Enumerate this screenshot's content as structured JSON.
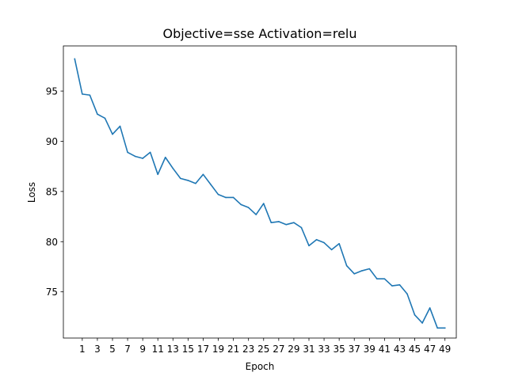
{
  "chart_data": {
    "type": "line",
    "title": "Objective=sse Activation=relu",
    "xlabel": "Epoch",
    "ylabel": "Loss",
    "xlim": [
      -1.5,
      50.5
    ],
    "ylim": [
      70.4,
      99.5
    ],
    "xticks": [
      1,
      3,
      5,
      7,
      9,
      11,
      13,
      15,
      17,
      19,
      21,
      23,
      25,
      27,
      29,
      31,
      33,
      35,
      37,
      39,
      41,
      43,
      45,
      47,
      49
    ],
    "yticks": [
      75,
      80,
      85,
      90,
      95
    ],
    "grid": false,
    "series": [
      {
        "color": "#1f77b4",
        "x": [
          0,
          1,
          2,
          3,
          4,
          5,
          6,
          7,
          8,
          9,
          10,
          11,
          12,
          13,
          14,
          15,
          16,
          17,
          18,
          19,
          20,
          21,
          22,
          23,
          24,
          25,
          26,
          27,
          28,
          29,
          30,
          31,
          32,
          33,
          34,
          35,
          36,
          37,
          38,
          39,
          40,
          41,
          42,
          43,
          44,
          45,
          46,
          47,
          48,
          49
        ],
        "y": [
          98.2,
          94.7,
          94.6,
          92.7,
          92.3,
          90.7,
          91.5,
          88.9,
          88.5,
          88.3,
          88.9,
          86.7,
          88.4,
          87.3,
          86.3,
          86.1,
          85.8,
          86.7,
          85.7,
          84.7,
          84.4,
          84.4,
          83.7,
          83.4,
          82.7,
          83.8,
          81.9,
          82.0,
          81.7,
          81.9,
          81.4,
          79.6,
          80.2,
          79.9,
          79.2,
          79.8,
          77.6,
          76.8,
          77.1,
          77.3,
          76.3,
          76.3,
          75.6,
          75.7,
          74.8,
          72.7,
          71.9,
          73.4,
          71.4,
          71.4
        ]
      }
    ]
  }
}
